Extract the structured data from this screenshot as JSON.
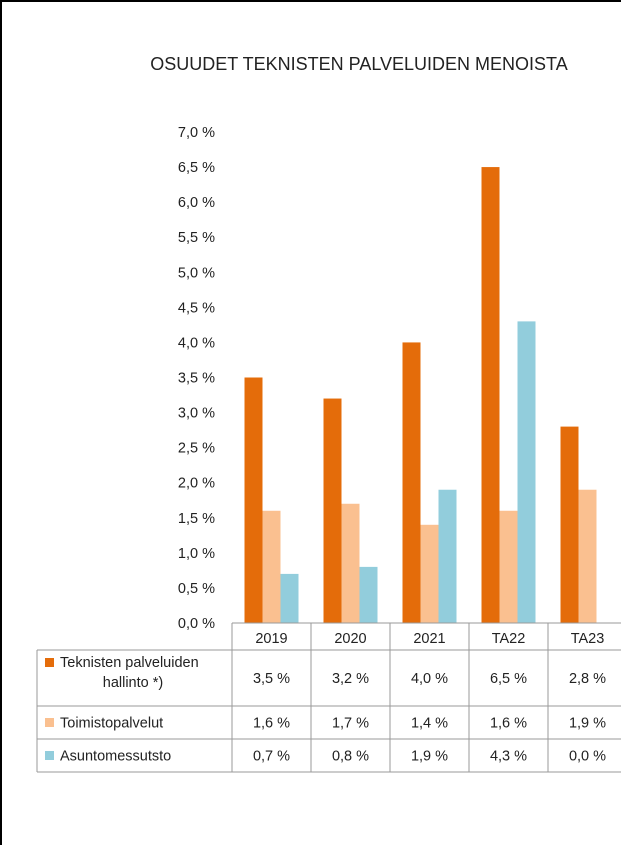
{
  "chart_data": {
    "type": "bar",
    "title": "OSUUDET TEKNISTEN PALVELUIDEN MENOISTA",
    "categories": [
      "2019",
      "2020",
      "2021",
      "TA22",
      "TA23"
    ],
    "yticks": [
      "0,0 %",
      "0,5 %",
      "1,0 %",
      "1,5 %",
      "2,0 %",
      "2,5 %",
      "3,0 %",
      "3,5 %",
      "4,0 %",
      "4,5 %",
      "5,0 %",
      "5,5 %",
      "6,0 %",
      "6,5 %",
      "7,0 %"
    ],
    "ylim": [
      0,
      7.0
    ],
    "legend_placement": "data-table",
    "grid": false,
    "series": [
      {
        "name": "Teknisten palveluiden hallinto *)",
        "name_lines": [
          "Teknisten palveluiden",
          "hallinto *)"
        ],
        "color": "#e46c0a",
        "values": [
          3.5,
          3.2,
          4.0,
          6.5,
          2.8
        ],
        "labels": [
          "3,5 %",
          "3,2 %",
          "4,0 %",
          "6,5 %",
          "2,8 %"
        ]
      },
      {
        "name": "Toimistopalvelut",
        "name_lines": [
          "Toimistopalvelut"
        ],
        "color": "#fac090",
        "values": [
          1.6,
          1.7,
          1.4,
          1.6,
          1.9
        ],
        "labels": [
          "1,6 %",
          "1,7 %",
          "1,4 %",
          "1,6 %",
          "1,9 %"
        ]
      },
      {
        "name": "Asuntomessutsto",
        "name_lines": [
          "Asuntomessutsto"
        ],
        "color": "#92cddc",
        "values": [
          0.7,
          0.8,
          1.9,
          4.3,
          0.0
        ],
        "labels": [
          "0,7 %",
          "0,8 %",
          "1,9 %",
          "4,3 %",
          "0,0 %"
        ]
      }
    ]
  }
}
